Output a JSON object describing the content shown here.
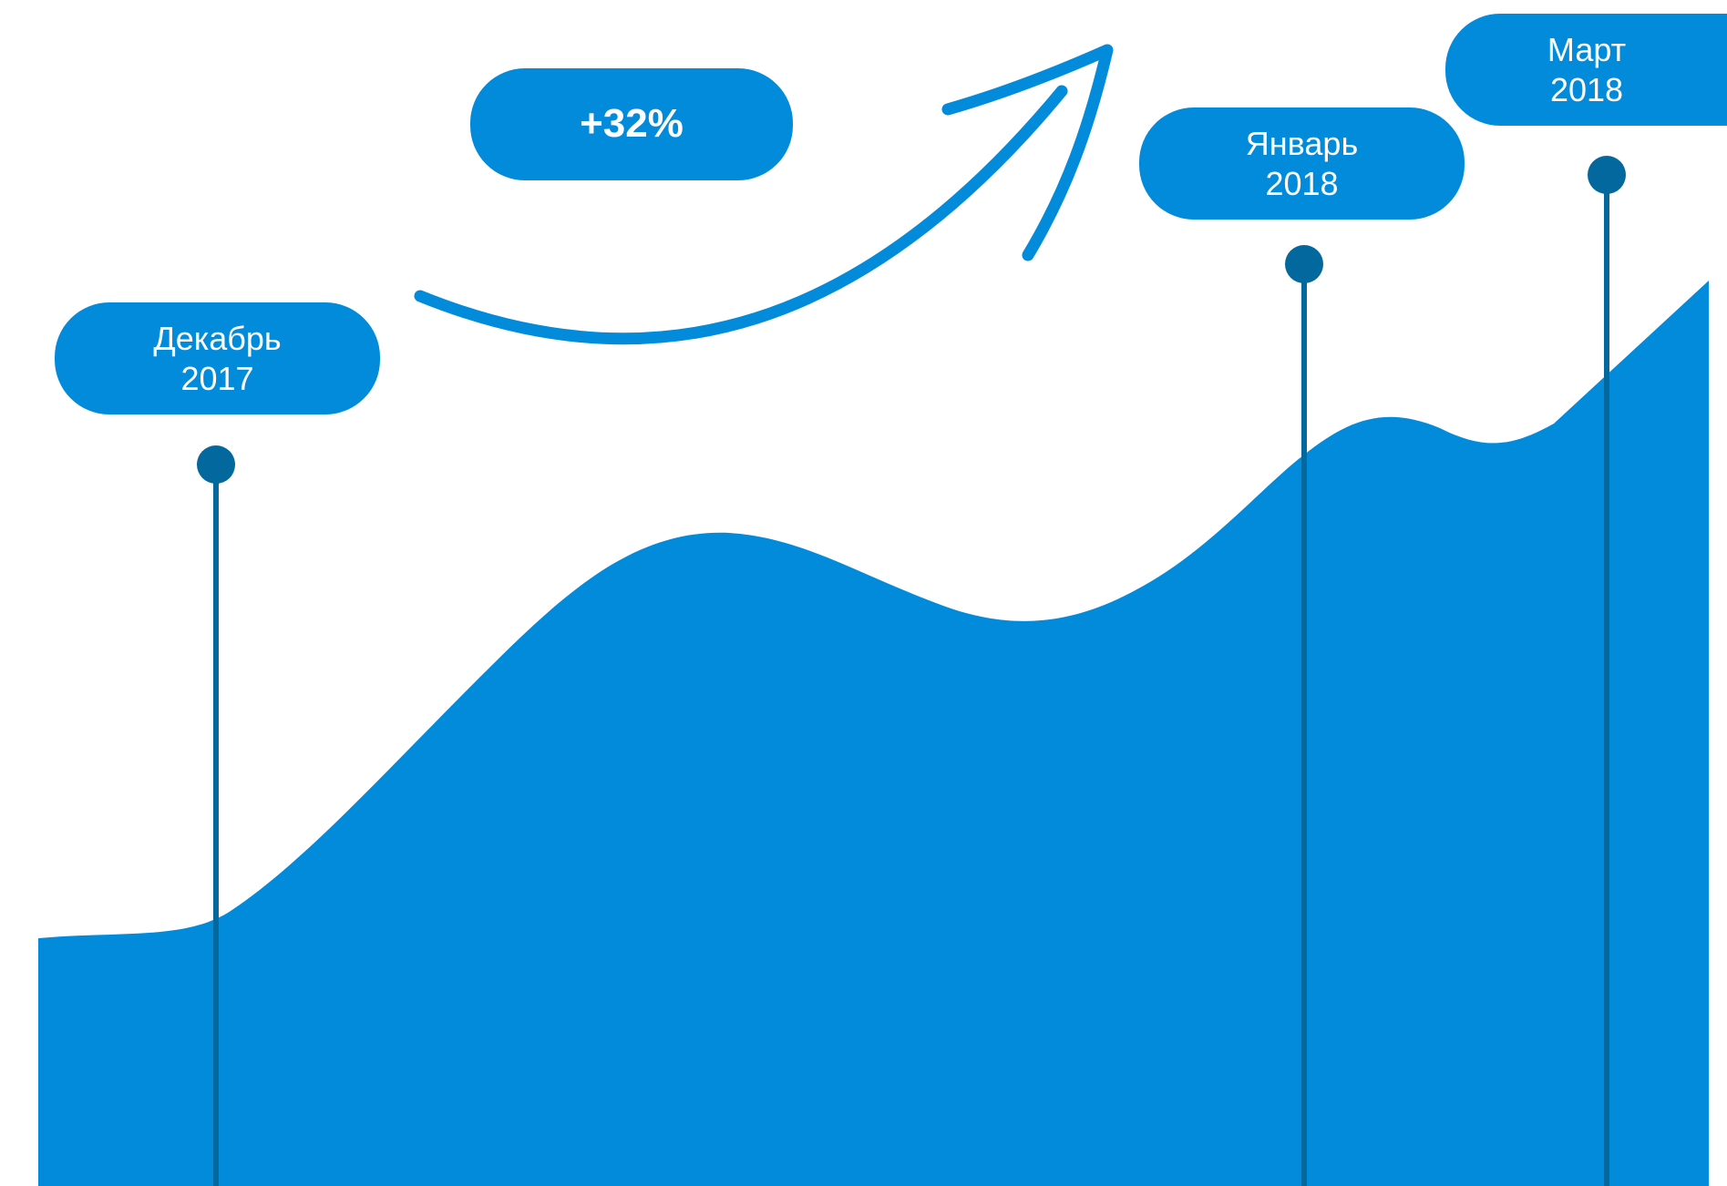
{
  "colors": {
    "area": "#028BDB",
    "marker": "#03689E",
    "pill": "#028BDB",
    "arrow": "#028BDB",
    "text": "#FFFFFF",
    "background": "#FFFFFF"
  },
  "growth_label": "+32%",
  "markers": [
    {
      "id": "dec",
      "line1": "Декабрь",
      "line2": "2017"
    },
    {
      "id": "jan",
      "line1": "Январь",
      "line2": "2018"
    },
    {
      "id": "mar",
      "line1": "Март",
      "line2": "2018"
    }
  ],
  "chart_data": {
    "type": "area",
    "title": "",
    "xlabel": "",
    "ylabel": "",
    "grid": false,
    "annotations": [
      "+32%",
      "Декабрь 2017",
      "Январь 2018",
      "Март 2018"
    ]
  }
}
